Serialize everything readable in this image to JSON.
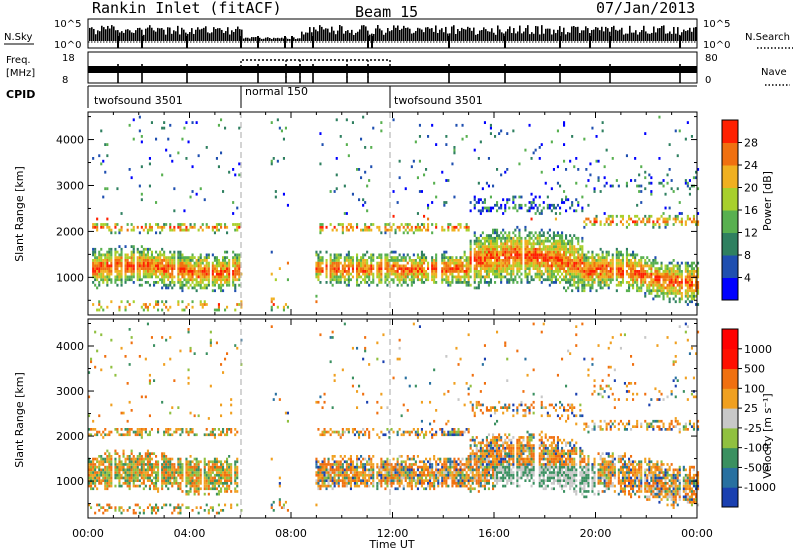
{
  "header": {
    "station_title": "Rankin Inlet (fitACF)",
    "beam_label": "Beam 15",
    "date_label": "07/Jan/2013"
  },
  "panels": {
    "nsky": {
      "left_label": "N.Sky",
      "right_label": "N.Search",
      "left_ticks": [
        "10^5",
        "10^0"
      ],
      "right_ticks": [
        "10^5",
        "10^0"
      ]
    },
    "freq": {
      "left_label_line1": "Freq.",
      "left_label_line2": "[MHz]",
      "right_label": "Nave",
      "left_ticks": [
        "18",
        "8"
      ],
      "right_ticks": [
        "80",
        "0"
      ]
    },
    "cpid": {
      "label": "CPID",
      "segments": [
        {
          "name": "twofsound 3501",
          "start_hour": 0,
          "end_hour": 6
        },
        {
          "name": "normal 150",
          "start_hour": 6,
          "end_hour": 12
        },
        {
          "name": "twofsound 3501",
          "start_hour": 12,
          "end_hour": 24
        }
      ]
    }
  },
  "chart_data": [
    {
      "type": "heatmap",
      "parameter": "power",
      "ylabel": "Slant Range [km]",
      "xlim": [
        0,
        24
      ],
      "ylim": [
        180,
        4600
      ],
      "yticks": [
        1000,
        2000,
        3000,
        4000
      ],
      "colorbar": {
        "label": "Power [dB]",
        "levels": [
          0,
          4,
          8,
          12,
          16,
          20,
          24,
          28,
          32
        ],
        "tick_labels": [
          "4",
          "8",
          "12",
          "16",
          "20",
          "24",
          "28"
        ],
        "colors": [
          "#0000ff",
          "#1f4fb0",
          "#2f8060",
          "#58b050",
          "#a8d02c",
          "#f0b020",
          "#f07010",
          "#ff2000"
        ]
      }
    },
    {
      "type": "heatmap",
      "parameter": "velocity",
      "ylabel": "Slant Range [km]",
      "xlabel": "Time UT",
      "xlim": [
        0,
        24
      ],
      "ylim": [
        180,
        4600
      ],
      "yticks": [
        1000,
        2000,
        3000,
        4000
      ],
      "xticks": [
        "00:00",
        "04:00",
        "08:00",
        "12:00",
        "16:00",
        "20:00",
        "00:00"
      ],
      "colorbar": {
        "label": "Velocity [m s⁻¹]",
        "tick_labels": [
          "1000",
          "500",
          "100",
          "25",
          "-25",
          "-100",
          "-500",
          "-1000"
        ],
        "colors": [
          "#1a40b0",
          "#2870a0",
          "#3a9060",
          "#90c040",
          "#c8c8c8",
          "#f0a020",
          "#f07010",
          "#ff1000",
          "#ff0000"
        ]
      }
    }
  ]
}
